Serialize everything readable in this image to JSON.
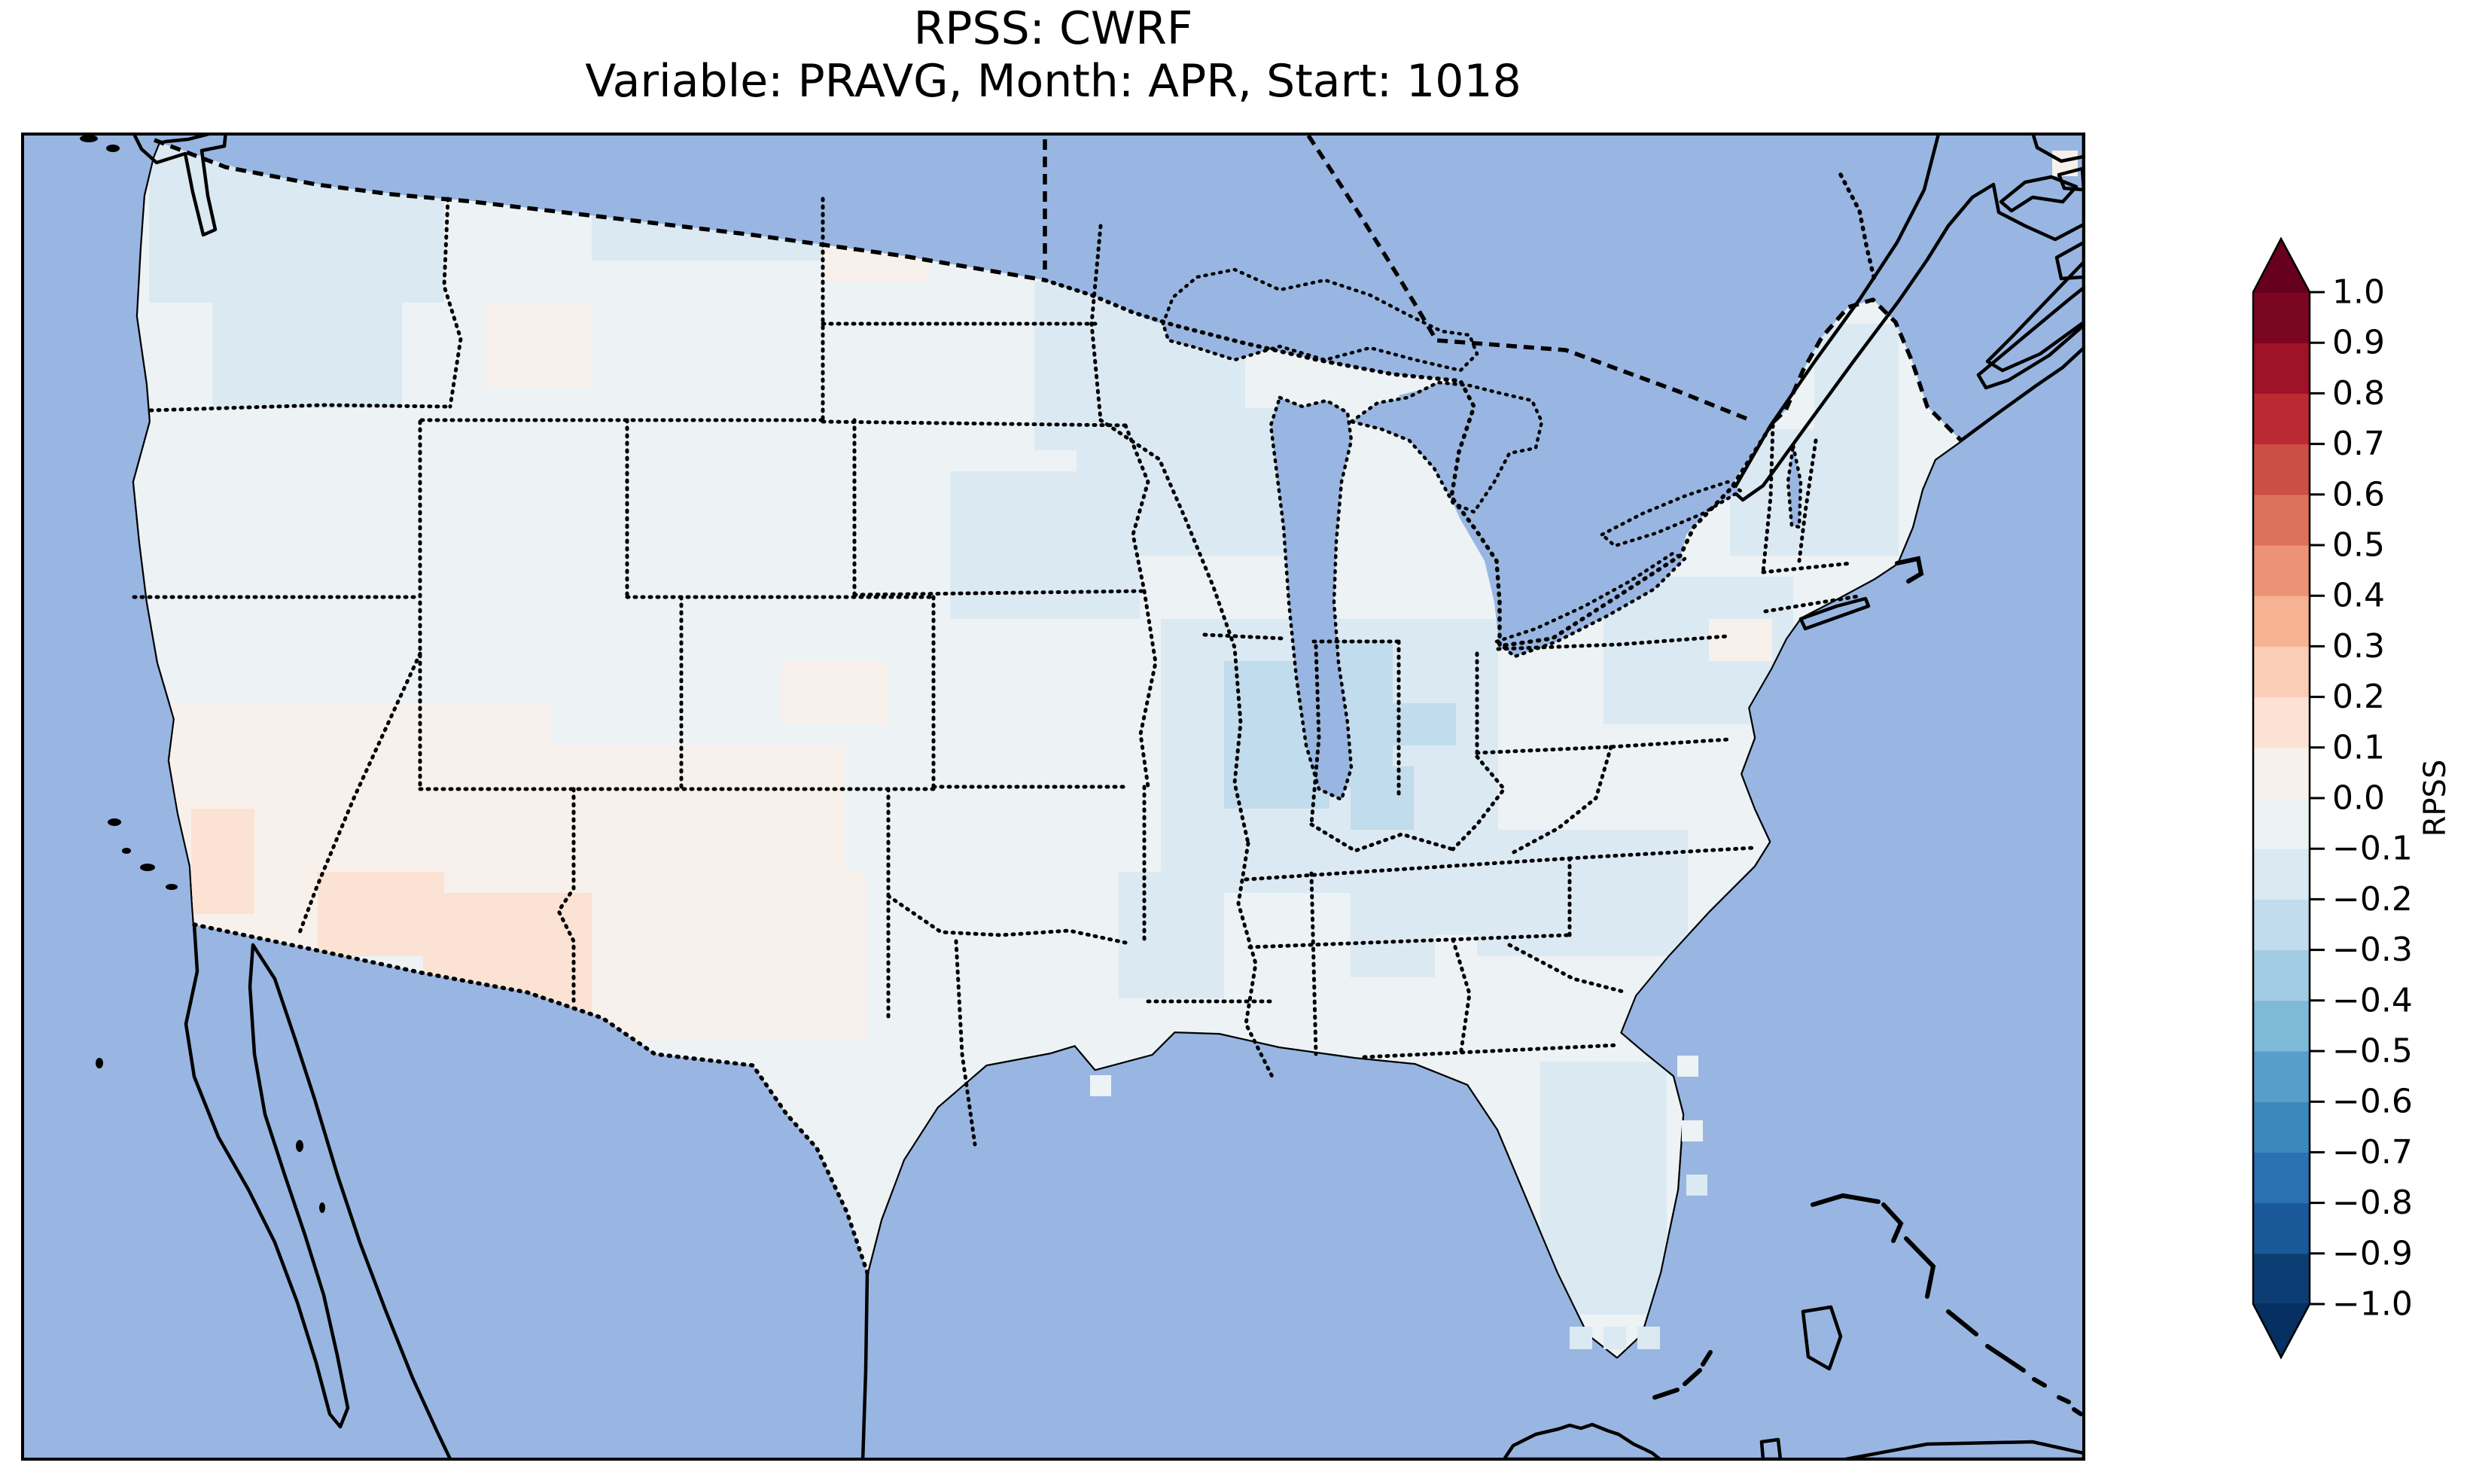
{
  "figure": {
    "title_line1": "RPSS: CWRF",
    "title_line2": "Variable: PRAVG, Month: APR, Start: 1018",
    "background_color": "#ffffff"
  },
  "colorbar": {
    "label": "RPSS",
    "orientation": "vertical",
    "tick_labels": [
      "1.0",
      "0.9",
      "0.8",
      "0.7",
      "0.6",
      "0.5",
      "0.4",
      "0.3",
      "0.2",
      "0.1",
      "0.0",
      "−0.1",
      "−0.2",
      "−0.3",
      "−0.4",
      "−0.5",
      "−0.6",
      "−0.7",
      "−0.8",
      "−0.9",
      "−1.0"
    ],
    "tick_values": [
      1.0,
      0.9,
      0.8,
      0.7,
      0.6,
      0.5,
      0.4,
      0.3,
      0.2,
      0.1,
      0.0,
      -0.1,
      -0.2,
      -0.3,
      -0.4,
      -0.5,
      -0.6,
      -0.7,
      -0.8,
      -0.9,
      -1.0
    ],
    "vmin": -1.0,
    "vmax": 1.0,
    "bin_width": 0.1,
    "segment_colors_bottom_to_top": [
      "#0c3e74",
      "#1a5999",
      "#2a71b2",
      "#3b88bd",
      "#579fca",
      "#7eb9d7",
      "#a2cce3",
      "#c1dcec",
      "#dbe9f2",
      "#edf2f5",
      "#f8f0eb",
      "#fbe2d3",
      "#facdb6",
      "#f6b293",
      "#ec9375",
      "#dd715a",
      "#cd4e44",
      "#bb2a33",
      "#9f1228",
      "#7a0622"
    ],
    "extend_over_color": "#67001f",
    "extend_under_color": "#053061"
  },
  "map": {
    "ocean_color": "#98b6e1",
    "land_color": "#ece9d4",
    "coastline_color": "#000000",
    "conus_base_value": -0.07
  },
  "chart_data": {
    "type": "heatmap",
    "title": "RPSS: CWRF — Variable: PRAVG, Month: APR, Start: 1018",
    "model": "CWRF",
    "variable": "PRAVG",
    "month": "APR",
    "start": "1018",
    "colormap": "RdBu, 20 discrete bins from -1.0 to 1.0, extended arrows both ends",
    "value_range": [
      -1.0,
      1.0
    ],
    "bin_width": 0.1,
    "legend_position": "right",
    "region_summary": [
      "Most of the contiguous U.S.: RPSS between 0 and -0.2 (very light blue)",
      "Southwest (southern CA, NV, UT, AZ, NM, west TX): slightly positive RPSS 0 to +0.2 (pale pink / peach)",
      "Illinois / Indiana / Ohio valley: RPSS around -0.2 to -0.3 (light-medium blue)",
      "Scattered near-zero (white) cells in AL, GA, central TX",
      "No data outside the U.S.; Canada and Mexico shown as beige land, water periwinkle blue"
    ],
    "patches": [
      [
        1540,
        830,
        460,
        360,
        -0.13
      ],
      [
        1560,
        1080,
        430,
        220,
        -0.14
      ],
      [
        210,
        180,
        380,
        210,
        -0.13
      ],
      [
        285,
        385,
        250,
        165,
        -0.12
      ],
      [
        790,
        180,
        320,
        165,
        -0.12
      ],
      [
        640,
        415,
        150,
        115,
        0.06
      ],
      [
        1095,
        275,
        130,
        100,
        0.05
      ],
      [
        1385,
        370,
        270,
        210,
        -0.15
      ],
      [
        1430,
        540,
        150,
        110,
        -0.12
      ],
      [
        1510,
        545,
        210,
        185,
        -0.14
      ],
      [
        1270,
        620,
        250,
        190,
        -0.12
      ],
      [
        860,
        570,
        240,
        180,
        -0.1
      ],
      [
        1050,
        870,
        130,
        90,
        0.05
      ],
      [
        235,
        940,
        490,
        130,
        0.07
      ],
      [
        235,
        1050,
        560,
        230,
        0.07
      ],
      [
        700,
        1000,
        430,
        170,
        0.06
      ],
      [
        760,
        1160,
        390,
        215,
        0.07
      ],
      [
        425,
        1160,
        170,
        125,
        0.14
      ],
      [
        560,
        1185,
        225,
        230,
        0.13
      ],
      [
        248,
        1062,
        95,
        150,
        0.12
      ],
      [
        1618,
        880,
        135,
        205,
        -0.22
      ],
      [
        1742,
        848,
        120,
        195,
        -0.26
      ],
      [
        1800,
        1020,
        90,
        70,
        -0.22
      ],
      [
        1858,
        935,
        75,
        65,
        -0.22
      ],
      [
        1470,
        1150,
        200,
        180,
        -0.12
      ],
      [
        1625,
        1180,
        165,
        165,
        -0.02
      ],
      [
        1895,
        1230,
        130,
        105,
        -0.02
      ],
      [
        1185,
        1100,
        310,
        270,
        -0.04
      ],
      [
        1120,
        1400,
        180,
        180,
        -0.08
      ],
      [
        1950,
        1090,
        280,
        170,
        -0.12
      ],
      [
        2060,
        1280,
        160,
        110,
        -0.08
      ],
      [
        2150,
        1295,
        130,
        95,
        -0.03
      ],
      [
        2055,
        1420,
        180,
        340,
        -0.13
      ],
      [
        2108,
        1552,
        56,
        56,
        -0.2
      ],
      [
        2400,
        430,
        120,
        140,
        -0.15
      ],
      [
        2300,
        560,
        210,
        170,
        -0.13
      ],
      [
        2140,
        760,
        250,
        190,
        -0.12
      ],
      [
        2282,
        828,
        95,
        62,
        0.06
      ]
    ],
    "ocean_cells": [
      [
        2085,
        1762,
        30,
        30,
        -0.15
      ],
      [
        2130,
        1762,
        30,
        30,
        -0.15
      ],
      [
        2175,
        1762,
        30,
        30,
        -0.15
      ],
      [
        2228,
        1402,
        28,
        28,
        -0.1
      ],
      [
        2234,
        1488,
        28,
        28,
        -0.1
      ],
      [
        2240,
        1560,
        28,
        28,
        -0.12
      ],
      [
        2726,
        200,
        34,
        34,
        0.02
      ],
      [
        1448,
        1428,
        28,
        28,
        -0.1
      ]
    ]
  }
}
